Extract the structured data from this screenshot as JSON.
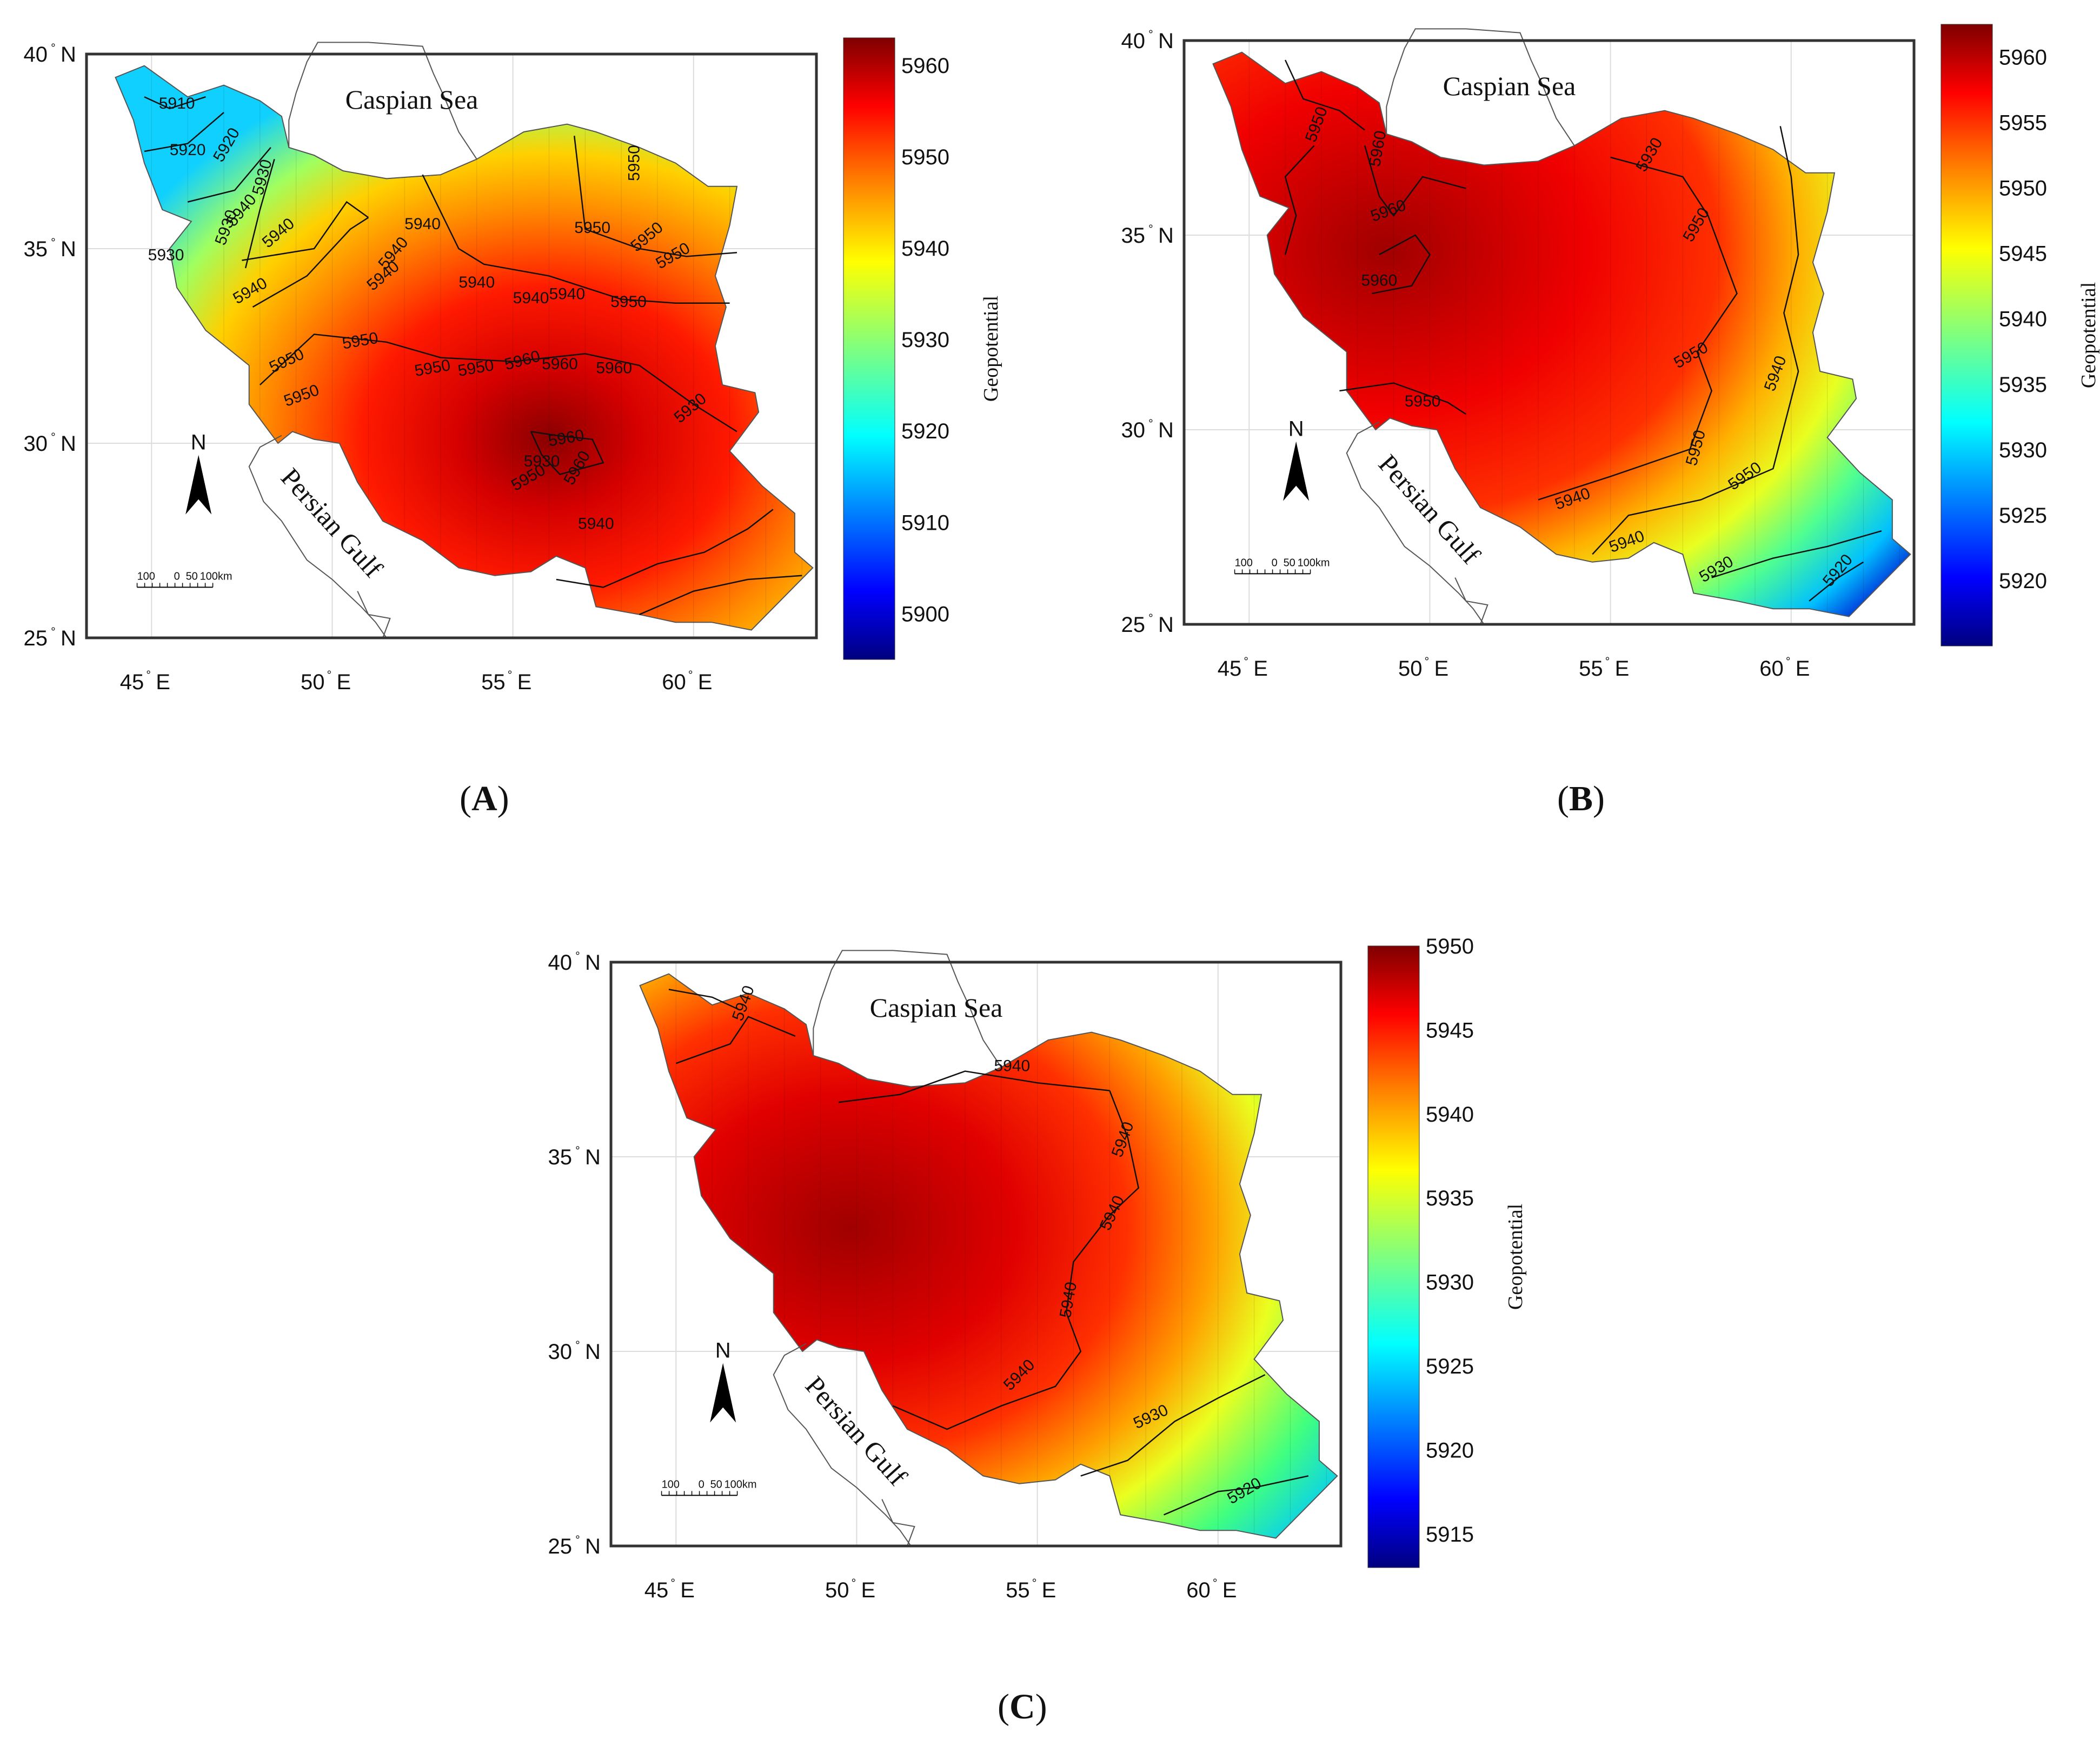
{
  "panels": [
    {
      "label": "A",
      "caspian_label": "Caspian Sea",
      "gulf_label": "Persian Gulf",
      "north_label": "N",
      "scale_labels": [
        "100",
        "0",
        "50",
        "100km"
      ],
      "lat_ticks": [
        "25",
        "30",
        "35",
        "40"
      ],
      "lat_suffix": "N",
      "lon_ticks": [
        "45",
        "50",
        "55",
        "60"
      ],
      "lon_suffix": "E",
      "colorbar": {
        "title": "Geopotential",
        "ticks": [
          "5900",
          "5910",
          "5920",
          "5930",
          "5940",
          "5950",
          "5960"
        ],
        "min": 5895,
        "max": 5963
      },
      "contour_labels": [
        "5910",
        "5920",
        "5920",
        "5930",
        "5930",
        "5930",
        "5940",
        "5940",
        "5940",
        "5940",
        "5940",
        "5940",
        "5940",
        "5940",
        "5940",
        "5950",
        "5950",
        "5950",
        "5950",
        "5950",
        "5950",
        "5950",
        "5950",
        "5950",
        "5950",
        "5960",
        "5960",
        "5960",
        "5930",
        "5930",
        "5960",
        "5960",
        "5950",
        "5940"
      ]
    },
    {
      "label": "B",
      "caspian_label": "Caspian Sea",
      "gulf_label": "Persian Gulf",
      "north_label": "N",
      "scale_labels": [
        "100",
        "0",
        "50",
        "100km"
      ],
      "lat_ticks": [
        "25",
        "30",
        "35",
        "40"
      ],
      "lat_suffix": "N",
      "lon_ticks": [
        "45",
        "50",
        "55",
        "60"
      ],
      "lon_suffix": "E",
      "colorbar": {
        "title": "Geopotential",
        "ticks": [
          "5920",
          "5925",
          "5930",
          "5935",
          "5940",
          "5945",
          "5950",
          "5955",
          "5960"
        ],
        "min": 5915,
        "max": 5962.5
      },
      "contour_labels": [
        "5950",
        "5960",
        "5960",
        "5960",
        "5930",
        "5950",
        "5950",
        "5940",
        "5950",
        "5950",
        "5940",
        "5940",
        "5930",
        "5920",
        "5950"
      ]
    },
    {
      "label": "C",
      "caspian_label": "Caspian Sea",
      "gulf_label": "Persian Gulf",
      "north_label": "N",
      "scale_labels": [
        "100",
        "0",
        "50",
        "100km"
      ],
      "lat_ticks": [
        "25",
        "30",
        "35",
        "40"
      ],
      "lat_suffix": "N",
      "lon_ticks": [
        "45",
        "50",
        "55",
        "60"
      ],
      "lon_suffix": "E",
      "colorbar": {
        "title": "Geopotential",
        "ticks": [
          "5915",
          "5920",
          "5925",
          "5930",
          "5935",
          "5940",
          "5945",
          "5950"
        ],
        "min": 5913,
        "max": 5950
      },
      "contour_labels": [
        "5940",
        "5940",
        "5940",
        "5940",
        "5940",
        "5940",
        "5930",
        "5920"
      ]
    }
  ],
  "colormap": [
    "#00007f",
    "#0000ff",
    "#007fff",
    "#00ffff",
    "#7fff7f",
    "#ffff00",
    "#ff7f00",
    "#ff0000",
    "#7f0000"
  ]
}
